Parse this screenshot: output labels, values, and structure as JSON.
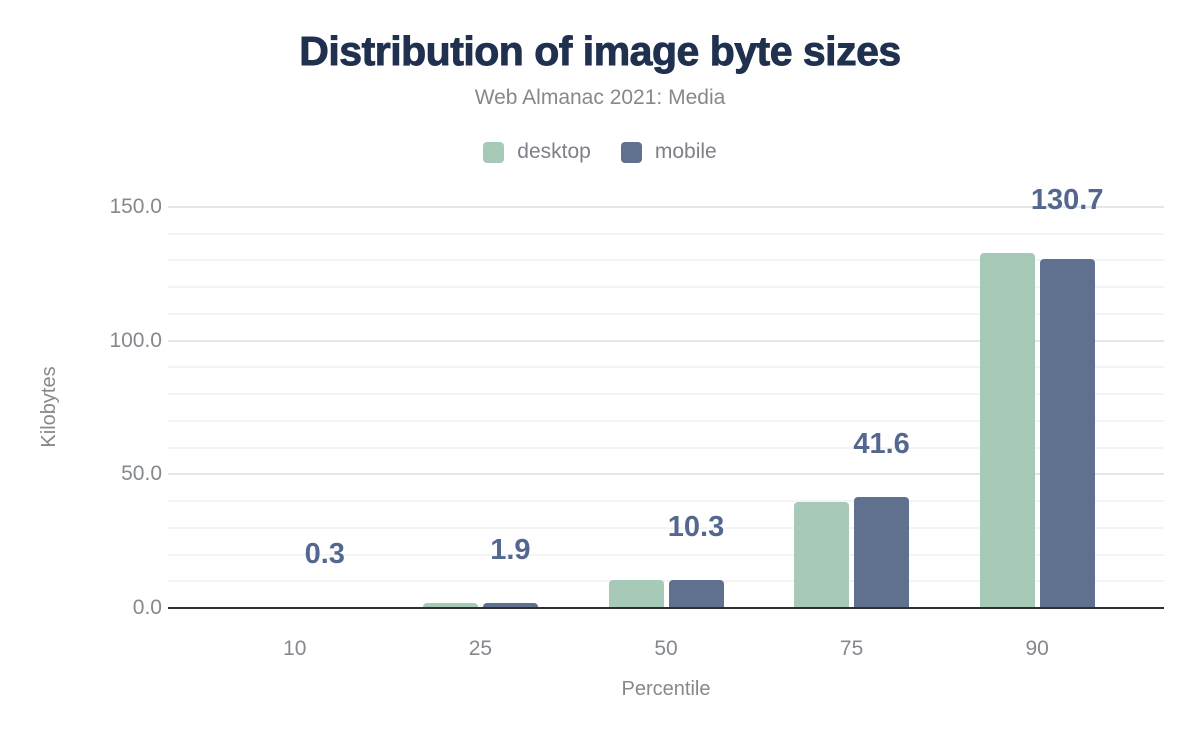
{
  "chart_data": {
    "type": "bar",
    "title": "Distribution of image byte sizes",
    "subtitle": "Web Almanac 2021: Media",
    "categories": [
      "10",
      "25",
      "50",
      "75",
      "90"
    ],
    "series": [
      {
        "name": "desktop",
        "color": "#a6cab7",
        "values": [
          0.3,
          2.0,
          10.5,
          39.7,
          132.9
        ]
      },
      {
        "name": "mobile",
        "color": "#5f718e",
        "values": [
          0.3,
          1.9,
          10.3,
          41.6,
          130.7
        ]
      }
    ],
    "data_labels": {
      "on_series": "mobile",
      "values": [
        "0.3",
        "1.9",
        "10.3",
        "41.6",
        "130.7"
      ]
    },
    "xlabel": "Percentile",
    "ylabel": "Kilobytes",
    "ylim": [
      0,
      150
    ],
    "yticks": [
      0,
      50,
      100,
      150
    ],
    "ytick_labels": [
      "0.0",
      "50.0",
      "100.0",
      "150.0"
    ],
    "minor_gridline_step": 10,
    "grid": true,
    "legend_position": "top"
  },
  "colors": {
    "title_text": "#20304f",
    "subtitle_text": "#85888d",
    "axis_text": "#85888d",
    "data_label_text": "#54688f",
    "axis_line": "#2f2f2f",
    "gridline_major": "#e6e6e6",
    "gridline_minor": "#f5f4f4",
    "desktop_bar": "#a6cab7",
    "mobile_bar": "#5f718e",
    "background": "#ffffff"
  }
}
